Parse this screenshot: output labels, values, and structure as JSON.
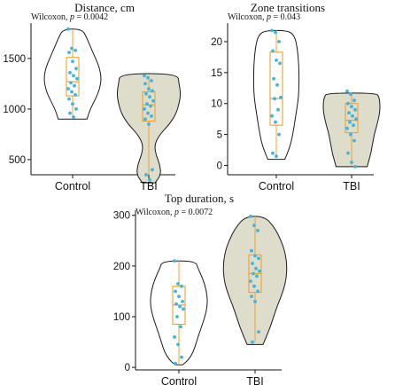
{
  "colors": {
    "violin_edge": "#1a1a1a",
    "tbi_fill": "#dedccb",
    "box": "#f0a030",
    "points": "#3fb4e0",
    "axis": "#111111"
  },
  "chart_data": [
    {
      "type": "violin",
      "title": "Distance, cm",
      "test_label": "Wilcoxon,",
      "p_label": "p",
      "p_value": "= 0.0042",
      "categories": [
        "Control",
        "TBI"
      ],
      "ylim": [
        350,
        1850
      ],
      "yticks": [
        500,
        1000,
        1500
      ],
      "series": [
        {
          "name": "Control",
          "filled": false,
          "violin": [
            [
              900,
              0.45
            ],
            [
              1000,
              0.55
            ],
            [
              1100,
              0.72
            ],
            [
              1200,
              0.85
            ],
            [
              1300,
              0.9
            ],
            [
              1400,
              0.85
            ],
            [
              1500,
              0.72
            ],
            [
              1600,
              0.58
            ],
            [
              1700,
              0.45
            ],
            [
              1790,
              0.3
            ]
          ],
          "box": {
            "q1": 1130,
            "median": 1270,
            "q3": 1510,
            "whisker_low": 920,
            "whisker_high": 1790
          },
          "points": [
            1790,
            1600,
            1580,
            1560,
            1470,
            1400,
            1360,
            1330,
            1300,
            1260,
            1230,
            1200,
            1170,
            1140,
            1100,
            1050,
            1000,
            960,
            920
          ]
        },
        {
          "name": "TBI",
          "filled": true,
          "violin": [
            [
              270,
              0.2
            ],
            [
              350,
              0.38
            ],
            [
              450,
              0.35
            ],
            [
              550,
              0.22
            ],
            [
              650,
              0.18
            ],
            [
              750,
              0.35
            ],
            [
              850,
              0.65
            ],
            [
              950,
              0.85
            ],
            [
              1050,
              0.95
            ],
            [
              1150,
              1.0
            ],
            [
              1250,
              0.95
            ],
            [
              1350,
              0.9
            ]
          ],
          "box": {
            "q1": 880,
            "median": 1040,
            "q3": 1170,
            "whisker_low": 290,
            "whisker_high": 1330
          },
          "points": [
            1330,
            1310,
            1280,
            1250,
            1200,
            1180,
            1150,
            1120,
            1080,
            1050,
            1030,
            1000,
            960,
            930,
            900,
            850,
            400,
            350,
            300
          ]
        }
      ]
    },
    {
      "type": "violin",
      "title": "Zone transitions",
      "test_label": "Wilcoxon,",
      "p_label": "p",
      "p_value": "= 0.043",
      "categories": [
        "Control",
        "TBI"
      ],
      "ylim": [
        -1.5,
        23
      ],
      "yticks": [
        0,
        5,
        10,
        15,
        20
      ],
      "series": [
        {
          "name": "Control",
          "filled": false,
          "violin": [
            [
              1,
              0.3
            ],
            [
              3,
              0.48
            ],
            [
              5,
              0.58
            ],
            [
              7,
              0.65
            ],
            [
              9,
              0.72
            ],
            [
              11,
              0.78
            ],
            [
              13,
              0.8
            ],
            [
              15,
              0.8
            ],
            [
              17,
              0.78
            ],
            [
              19,
              0.74
            ],
            [
              21,
              0.64
            ],
            [
              21.8,
              0.4
            ]
          ],
          "box": {
            "q1": 6.5,
            "median": 10.8,
            "q3": 18.3,
            "whisker_low": 1,
            "whisker_high": 21.8
          },
          "points": [
            21.8,
            21.5,
            20,
            18.5,
            17,
            16.5,
            14,
            13,
            11,
            10.8,
            9,
            8,
            7,
            5,
            2,
            1.5
          ]
        },
        {
          "name": "TBI",
          "filled": true,
          "violin": [
            [
              -0.2,
              0.55
            ],
            [
              1,
              0.62
            ],
            [
              2,
              0.68
            ],
            [
              3,
              0.72
            ],
            [
              4,
              0.76
            ],
            [
              5,
              0.8
            ],
            [
              6,
              0.86
            ],
            [
              7,
              0.92
            ],
            [
              8,
              0.97
            ],
            [
              9,
              1.0
            ],
            [
              10,
              1.0
            ],
            [
              11,
              0.97
            ],
            [
              11.7,
              0.88
            ]
          ],
          "box": {
            "q1": 5.3,
            "median": 7.3,
            "q3": 10.0,
            "whisker_low": 0,
            "whisker_high": 11.7
          },
          "points": [
            12,
            11.5,
            10.5,
            10,
            9.5,
            9,
            8.5,
            8,
            7.5,
            7,
            6.5,
            6,
            5,
            4,
            2,
            0.5,
            -0.2
          ]
        }
      ]
    },
    {
      "type": "violin",
      "title": "Top duration, s",
      "test_label": "Wilcoxon,",
      "p_label": "p",
      "p_value": "= 0.0072",
      "categories": [
        "Control",
        "TBI"
      ],
      "ylim": [
        -5,
        310
      ],
      "yticks": [
        0,
        100,
        200,
        300
      ],
      "series": [
        {
          "name": "Control",
          "filled": false,
          "violin": [
            [
              5,
              0.12
            ],
            [
              15,
              0.3
            ],
            [
              30,
              0.45
            ],
            [
              50,
              0.55
            ],
            [
              75,
              0.68
            ],
            [
              100,
              0.82
            ],
            [
              125,
              0.9
            ],
            [
              150,
              0.87
            ],
            [
              175,
              0.75
            ],
            [
              195,
              0.6
            ],
            [
              210,
              0.52
            ]
          ],
          "box": {
            "q1": 85,
            "median": 123,
            "q3": 160,
            "whisker_low": 5,
            "whisker_high": 210
          },
          "points": [
            210,
            165,
            160,
            150,
            140,
            130,
            125,
            120,
            115,
            100,
            80,
            60,
            45,
            20,
            8
          ]
        },
        {
          "name": "TBI",
          "filled": true,
          "violin": [
            [
              45,
              0.25
            ],
            [
              60,
              0.35
            ],
            [
              80,
              0.48
            ],
            [
              100,
              0.58
            ],
            [
              125,
              0.72
            ],
            [
              150,
              0.88
            ],
            [
              175,
              0.98
            ],
            [
              200,
              1.0
            ],
            [
              225,
              0.95
            ],
            [
              250,
              0.82
            ],
            [
              275,
              0.62
            ],
            [
              298,
              0.3
            ]
          ],
          "box": {
            "q1": 148,
            "median": 185,
            "q3": 222,
            "whisker_low": 50,
            "whisker_high": 298
          },
          "points": [
            298,
            280,
            270,
            230,
            220,
            215,
            205,
            195,
            190,
            185,
            180,
            170,
            160,
            150,
            140,
            130,
            70,
            50
          ]
        }
      ]
    }
  ]
}
